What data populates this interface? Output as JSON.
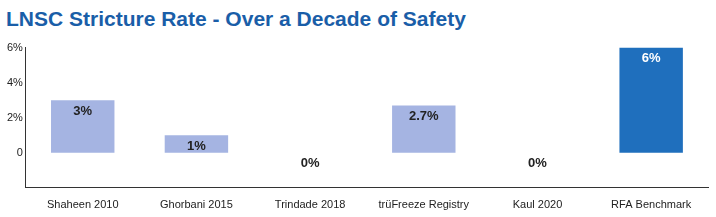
{
  "chart_data": {
    "type": "bar",
    "title": "LNSC Stricture Rate - Over a Decade of Safety",
    "categories": [
      "Shaheen 2010",
      "Ghorbani 2015",
      "Trindade 2018",
      "trüFreeze Registry",
      "Kaul 2020",
      "RFA Benchmark"
    ],
    "values": [
      3,
      1,
      0,
      2.7,
      0,
      6
    ],
    "value_labels": [
      "3%",
      "1%",
      "0%",
      "2.7%",
      "0%",
      "6%"
    ],
    "colors": [
      "#a5b4e2",
      "#a5b4e2",
      "#a5b4e2",
      "#a5b4e2",
      "#a5b4e2",
      "#1f6fbd"
    ],
    "ylim": [
      -2,
      6
    ],
    "yticks": [
      0,
      {
        "value": 2,
        "label": "2%"
      },
      {
        "value": 4,
        "label": "4%"
      },
      {
        "value": 6,
        "label": "6%"
      }
    ],
    "grid": false,
    "data_labels": true
  }
}
